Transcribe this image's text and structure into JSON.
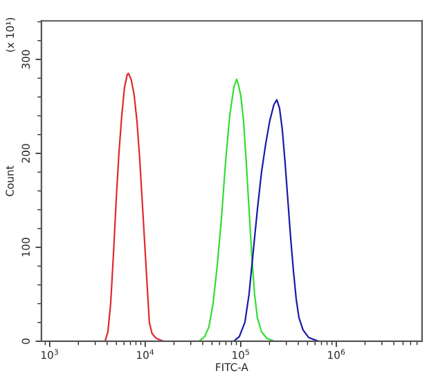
{
  "chart_data": {
    "type": "line",
    "xlabel": "FITC-A",
    "ylabel": "Count",
    "annotations": [
      "(x 10¹)"
    ],
    "log": "x",
    "xlim": [
      820,
      7900000
    ],
    "xticks": [
      {
        "value": 1000,
        "label": "10$^{3}$"
      },
      {
        "value": 10000,
        "label": "10$^{4}$"
      },
      {
        "value": 100000,
        "label": "10$^{5}$"
      },
      {
        "value": 1000000,
        "label": "10$^{6}$"
      }
    ],
    "ylim": [
      0,
      341
    ],
    "yticks": [
      0,
      100,
      200,
      300
    ],
    "grid": false,
    "series": [
      {
        "color": "#e0282d",
        "x": [
          3800,
          4070,
          4350,
          4640,
          4970,
          5310,
          5680,
          6070,
          6490,
          6700,
          7160,
          7660,
          8190,
          8750,
          9360,
          10000,
          10690,
          11050,
          11810,
          13060,
          15420
        ],
        "values": [
          0,
          10,
          40,
          90,
          150,
          200,
          240,
          270,
          284,
          285,
          278,
          262,
          235,
          195,
          145,
          95,
          45,
          20,
          8,
          3,
          0
        ]
      },
      {
        "color": "#33dd33",
        "x": [
          36700,
          41950,
          46400,
          51300,
          56700,
          62700,
          69300,
          76600,
          84600,
          90500,
          93500,
          100000,
          106900,
          114300,
          122200,
          130600,
          139600,
          149300,
          165000,
          188000,
          223000
        ],
        "values": [
          0,
          5,
          15,
          40,
          80,
          130,
          190,
          240,
          270,
          279,
          275,
          262,
          235,
          190,
          140,
          90,
          50,
          25,
          10,
          3,
          0
        ]
      },
      {
        "color": "#1a1aa8",
        "x": [
          84600,
          96700,
          110500,
          122200,
          135000,
          149300,
          165000,
          182400,
          201500,
          222700,
          238300,
          254700,
          272400,
          291200,
          311400,
          332900,
          355900,
          380500,
          406800,
          449000,
          513000,
          649000
        ],
        "values": [
          0,
          5,
          20,
          50,
          95,
          140,
          180,
          210,
          235,
          252,
          257,
          248,
          225,
          190,
          150,
          110,
          75,
          45,
          25,
          12,
          4,
          0
        ]
      }
    ]
  }
}
